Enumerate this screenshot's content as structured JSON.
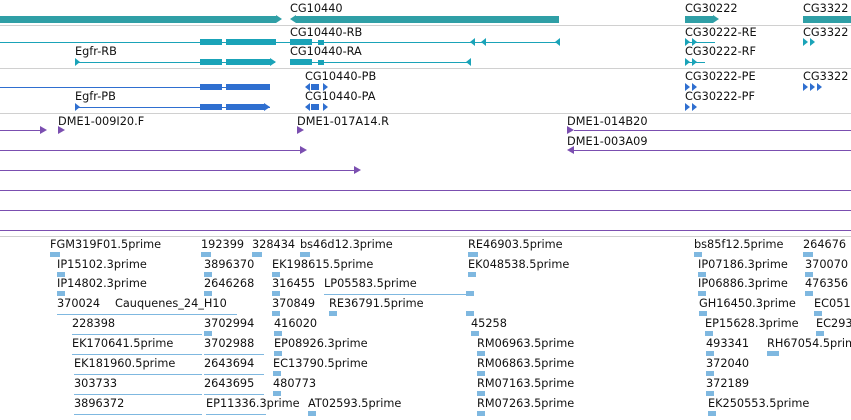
{
  "colors": {
    "gene": "#2f9fa6",
    "transcript_a": "#1aa3b8",
    "transcript_b": "#2f6fd0",
    "clone": "#7b4fb0",
    "est": "#7fb8e0",
    "separator": "#d0d0d0"
  },
  "gene_track": {
    "labels": [
      "CG10440",
      "CG30222",
      "CG3322"
    ]
  },
  "transcript_track_1": {
    "labels": [
      "CG10440-RB",
      "Egfr-RB",
      "CG10440-RA",
      "CG30222-RE",
      "CG30222-RF",
      "CG3322"
    ]
  },
  "transcript_track_2": {
    "labels": [
      "CG10440-PB",
      "Egfr-PB",
      "CG10440-PA",
      "CG30222-PE",
      "CG30222-PF",
      "CG3322"
    ]
  },
  "clone_track": {
    "labels": [
      "DME1-009I20.F",
      "DME1-017A14.R",
      "DME1-014B20",
      "DME1-003A09"
    ]
  },
  "est_track": {
    "labels": [
      "FGM319F01.5prime",
      "192399",
      "328434",
      "bs46d12.3prime",
      "RE46903.5prime",
      "bs85f12.5prime",
      "264676",
      "IP15102.3prime",
      "3896370",
      "EK198615.5prime",
      "EK048538.5prime",
      "IP07186.3prime",
      "370070",
      "IP14802.3prime",
      "2646268",
      "316455",
      "LP05583.5prime",
      "IP06886.3prime",
      "476356",
      "370024",
      "Cauquenes_24_H10",
      "370849",
      "RE36791.5prime",
      "GH16450.3prime",
      "EC051",
      "228398",
      "3702994",
      "416020",
      "45258",
      "EP15628.3prime",
      "EC293",
      "EK170641.5prime",
      "3702988",
      "EP08926.3prime",
      "RM06963.5prime",
      "493341",
      "RH67054.5prime",
      "EK181960.5prime",
      "2643694",
      "EC13790.5prime",
      "RM06863.5prime",
      "372040",
      "303733",
      "2643695",
      "480773",
      "RM07163.5prime",
      "372189",
      "3896372",
      "EP11336.3prime",
      "AT02593.5prime",
      "RM07263.5prime",
      "EK250553.5prime"
    ]
  }
}
